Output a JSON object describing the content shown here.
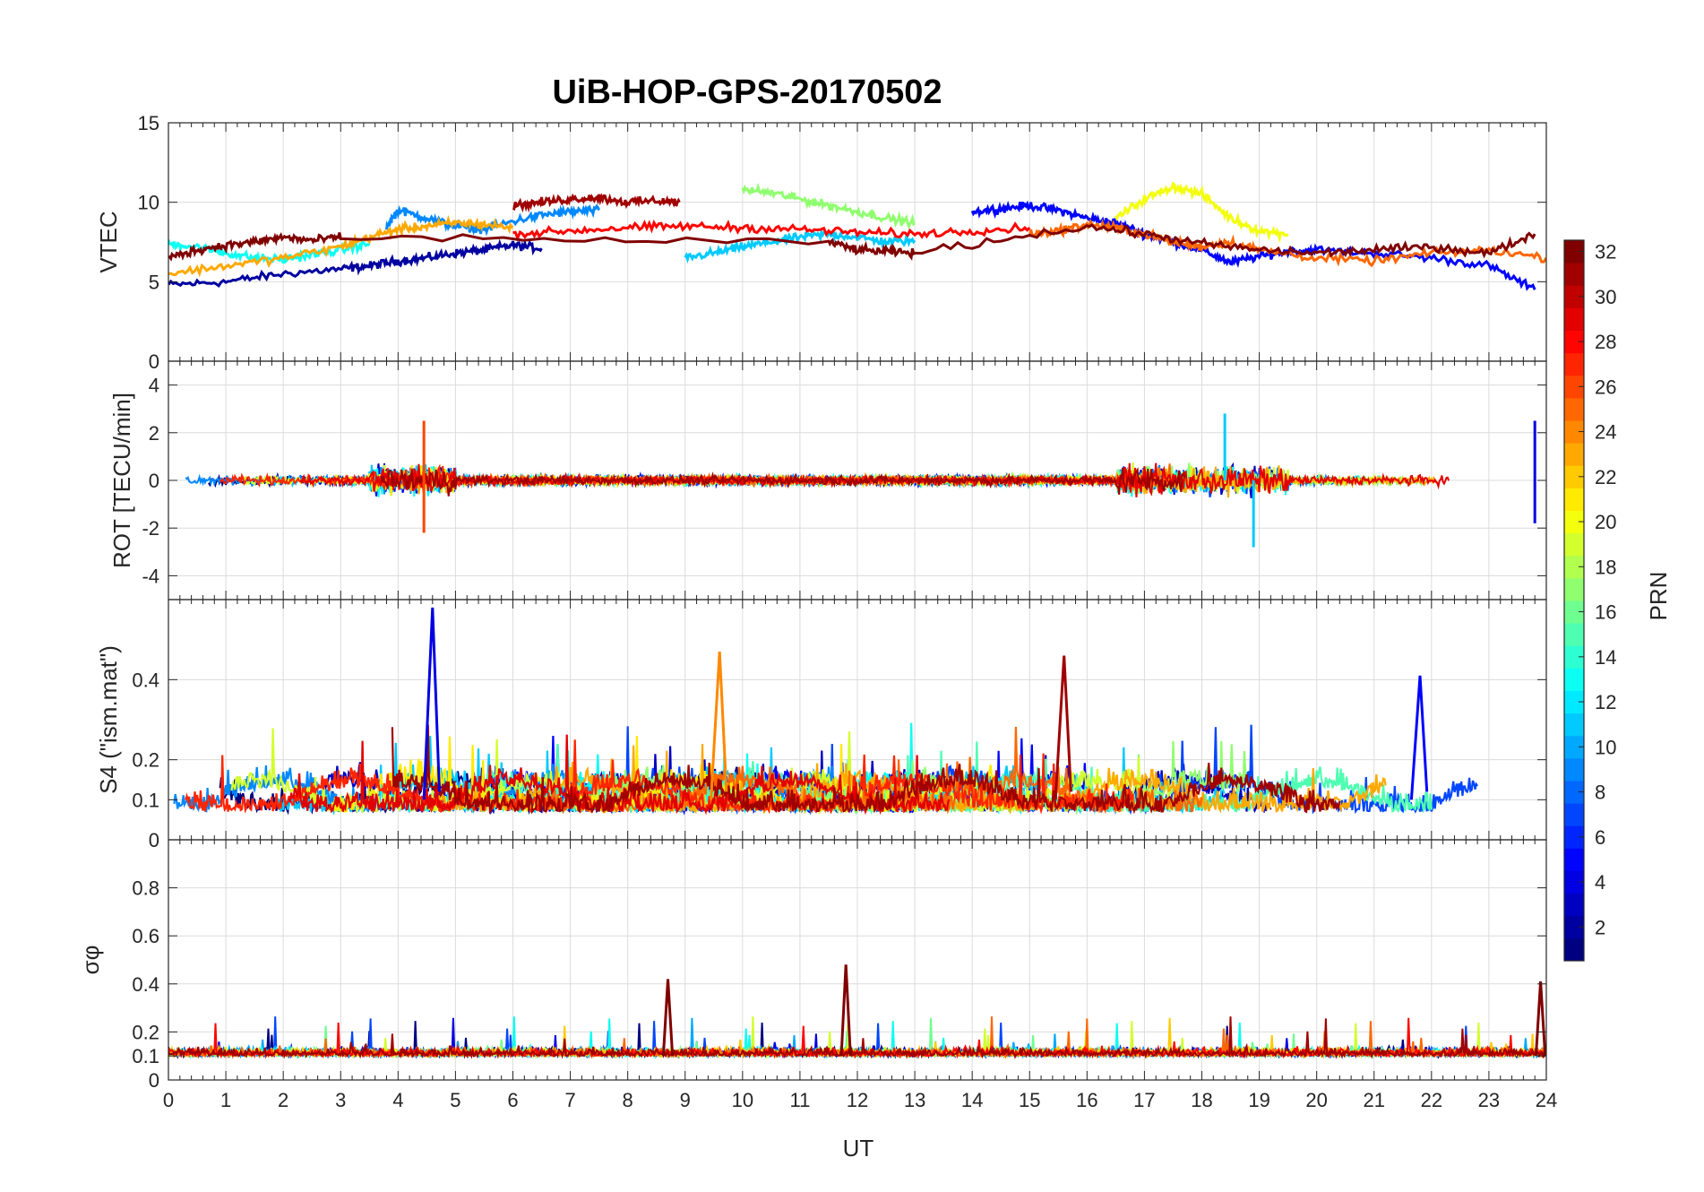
{
  "chart_data": {
    "type": "line",
    "title": "UiB-HOP-GPS-20170502",
    "xlabel": "UT",
    "xlim": [
      0,
      24
    ],
    "xticks": [
      "0",
      "1",
      "2",
      "3",
      "4",
      "5",
      "6",
      "7",
      "8",
      "9",
      "10",
      "11",
      "12",
      "13",
      "14",
      "15",
      "16",
      "17",
      "18",
      "19",
      "20",
      "21",
      "22",
      "23",
      "24"
    ],
    "colorbar": {
      "label": "PRN",
      "range": [
        1,
        32
      ],
      "ticks": [
        "2",
        "4",
        "6",
        "8",
        "10",
        "12",
        "14",
        "16",
        "18",
        "20",
        "22",
        "24",
        "26",
        "28",
        "30",
        "32"
      ]
    },
    "panels": [
      {
        "id": "vtec",
        "ylabel": "VTEC",
        "ylim": [
          0,
          15
        ],
        "yticks": [
          "0",
          "5",
          "10",
          "15"
        ],
        "series": [
          {
            "name": "PRN 2",
            "prn": 2,
            "x": [
              0,
              1,
              2,
              3,
              3.5,
              4,
              4.5,
              5,
              5.5,
              6,
              6.5
            ],
            "y": [
              4.8,
              5.0,
              5.5,
              5.8,
              6.0,
              6.3,
              6.5,
              6.8,
              7.0,
              7.3,
              7.1
            ]
          },
          {
            "name": "PRN 5",
            "prn": 5,
            "x": [
              14,
              14.5,
              15,
              15.5,
              16,
              16.5,
              17,
              17.5,
              18,
              18.5,
              19,
              19.5,
              20,
              21,
              22,
              23,
              23.8
            ],
            "y": [
              9.4,
              9.6,
              9.8,
              9.5,
              9.0,
              8.7,
              8.0,
              7.5,
              7.0,
              6.2,
              6.6,
              6.9,
              7.0,
              6.8,
              6.5,
              6.0,
              4.5
            ]
          },
          {
            "name": "PRN 9",
            "prn": 9,
            "x": [
              3.8,
              4.0,
              4.5,
              5,
              5.5,
              6,
              6.5,
              7,
              7.5
            ],
            "y": [
              8.5,
              9.5,
              9.0,
              8.5,
              8.3,
              8.8,
              9.2,
              9.4,
              9.5
            ]
          },
          {
            "name": "PRN 11",
            "prn": 11,
            "x": [
              9,
              9.5,
              10,
              10.5,
              11,
              11.5,
              12,
              12.5,
              13
            ],
            "y": [
              6.5,
              6.8,
              7.2,
              7.5,
              7.8,
              8.0,
              7.8,
              7.5,
              7.6
            ]
          },
          {
            "name": "PRN 13",
            "prn": 13,
            "x": [
              0,
              0.5,
              1,
              1.5,
              2,
              2.5,
              3,
              3.5
            ],
            "y": [
              7.4,
              7.2,
              6.8,
              6.5,
              6.4,
              6.7,
              7.0,
              7.4
            ]
          },
          {
            "name": "PRN 17",
            "prn": 17,
            "x": [
              10,
              10.5,
              11,
              11.5,
              12,
              12.5,
              13
            ],
            "y": [
              10.8,
              10.6,
              10.2,
              9.8,
              9.4,
              9.0,
              8.7
            ]
          },
          {
            "name": "PRN 20",
            "prn": 20,
            "x": [
              16.5,
              17,
              17.5,
              18,
              18.5,
              19,
              19.5
            ],
            "y": [
              9.0,
              10.2,
              11.0,
              10.5,
              9.0,
              8.2,
              8.0
            ]
          },
          {
            "name": "PRN 23",
            "prn": 23,
            "x": [
              0,
              1,
              2,
              3,
              3.5,
              4,
              4.5,
              5,
              5.5,
              6
            ],
            "y": [
              5.5,
              6.0,
              6.5,
              7.2,
              7.8,
              8.3,
              8.5,
              8.7,
              8.6,
              8.4
            ]
          },
          {
            "name": "PRN 25",
            "prn": 25,
            "x": [
              15,
              15.5,
              16,
              16.5,
              17,
              17.5,
              18,
              18.5,
              19,
              20,
              21,
              22,
              23,
              24
            ],
            "y": [
              8.0,
              8.2,
              8.6,
              8.4,
              8.0,
              7.5,
              7.2,
              7.5,
              7.0,
              6.5,
              6.3,
              6.8,
              7.0,
              6.5
            ]
          },
          {
            "name": "PRN 28",
            "prn": 28,
            "x": [
              6,
              7,
              8,
              9,
              10,
              11,
              12,
              13,
              14,
              15
            ],
            "y": [
              8.0,
              8.2,
              8.4,
              8.5,
              8.4,
              8.3,
              8.1,
              8.0,
              8.2,
              8.4
            ]
          },
          {
            "name": "PRN 31",
            "prn": 31,
            "x": [
              6,
              6.5,
              7,
              7.5,
              8,
              8.5,
              8.9
            ],
            "y": [
              9.8,
              10.0,
              10.2,
              10.3,
              10.0,
              10.1,
              10.0
            ]
          },
          {
            "name": "PRN 32",
            "prn": 32,
            "x": [
              0,
              0.5,
              1,
              1.5,
              2,
              2.5,
              3,
              11.5,
              12,
              12.5,
              13,
              16,
              17,
              18,
              19,
              20,
              21,
              22,
              23,
              23.8
            ],
            "y": [
              6.5,
              7.0,
              7.3,
              7.5,
              7.8,
              7.6,
              7.8,
              7.5,
              7.0,
              6.9,
              6.8,
              8.5,
              8.0,
              7.4,
              7.0,
              6.8,
              7.0,
              7.2,
              6.8,
              8.0
            ]
          }
        ]
      },
      {
        "id": "rot",
        "ylabel": "ROT [TECU/min]",
        "ylim": [
          -5,
          5
        ],
        "yticks": [
          "-4",
          "-2",
          "0",
          "2",
          "4"
        ],
        "spikes": [
          {
            "prn": 26,
            "x": 4.45,
            "y": 2.5
          },
          {
            "prn": 26,
            "x": 4.45,
            "y": -2.2
          },
          {
            "prn": 11,
            "x": 18.4,
            "y": 2.8
          },
          {
            "prn": 11,
            "x": 18.9,
            "y": -2.8
          },
          {
            "prn": 4,
            "x": 23.8,
            "y": 2.5
          },
          {
            "prn": 4,
            "x": 23.8,
            "y": -1.8
          }
        ]
      },
      {
        "id": "s4",
        "ylabel": "S4 (\"ism.mat\")",
        "ylim": [
          0,
          0.6
        ],
        "yticks": [
          "0",
          "0.1",
          "0.2",
          "0.4"
        ],
        "peaks": [
          {
            "prn": 4,
            "x": 4.6,
            "y": 0.58
          },
          {
            "prn": 24,
            "x": 9.6,
            "y": 0.47
          },
          {
            "prn": 31,
            "x": 15.6,
            "y": 0.46
          },
          {
            "prn": 5,
            "x": 21.8,
            "y": 0.41
          }
        ]
      },
      {
        "id": "sigma",
        "ylabel": "σφ",
        "ylim": [
          0,
          1
        ],
        "yticks": [
          "0",
          "0.1",
          "0.2",
          "0.4",
          "0.6",
          "0.8"
        ],
        "peaks": [
          {
            "prn": 32,
            "x": 11.8,
            "y": 0.48
          },
          {
            "prn": 32,
            "x": 8.7,
            "y": 0.42
          },
          {
            "prn": 32,
            "x": 23.9,
            "y": 0.41
          }
        ]
      }
    ]
  }
}
